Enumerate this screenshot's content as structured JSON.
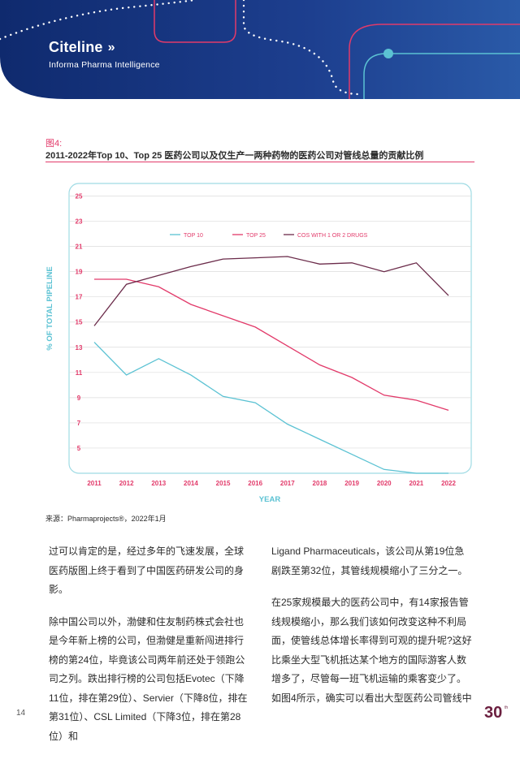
{
  "brand": {
    "name": "Citeline",
    "tagline": "Informa Pharma Intelligence"
  },
  "figure": {
    "label": "图4:",
    "title": "2011-2022年Top 10、Top 25 医药公司以及仅生产一两种药物的医药公司对管线总量的贡献比例"
  },
  "colors": {
    "top10": "#5bc2d3",
    "top25": "#e23a6a",
    "cos": "#6b2b4a",
    "navy": "#16286a",
    "axis": "#e23a6a"
  },
  "chart_data": {
    "type": "line",
    "x": [
      2011,
      2012,
      2013,
      2014,
      2015,
      2016,
      2017,
      2018,
      2019,
      2020,
      2021,
      2022
    ],
    "series": [
      {
        "name": "TOP 10",
        "values": [
          13.4,
          10.8,
          12.1,
          10.8,
          9.1,
          8.6,
          6.9,
          5.7,
          4.5,
          3.3,
          3.0,
          2.2
        ]
      },
      {
        "name": "TOP 25",
        "values": [
          18.4,
          18.4,
          17.8,
          16.4,
          15.5,
          14.6,
          13.1,
          11.6,
          10.6,
          9.2,
          8.8,
          8.0
        ]
      },
      {
        "name": "COS WITH 1 OR 2 DRUGS",
        "values": [
          14.7,
          18.0,
          18.7,
          19.4,
          20.0,
          20.1,
          20.2,
          19.6,
          19.7,
          19.0,
          19.7,
          17.1
        ]
      }
    ],
    "xlabel": "YEAR",
    "ylabel": "% OF TOTAL PIPELINE",
    "yticks": [
      5,
      7,
      9,
      11,
      13,
      15,
      17,
      19,
      21,
      23,
      25
    ],
    "ylim": [
      3,
      26
    ],
    "grid": true,
    "legend": "top-center"
  },
  "source": "来源：Pharmaprojects®，2022年1月",
  "body": {
    "left": [
      "过可以肯定的是，经过多年的飞速发展，全球医药版图上终于看到了中国医药研发公司的身影。",
      "除中国公司以外，渤健和住友制药株式会社也是今年新上榜的公司，但渤健是重新闯进排行榜的第24位，毕竟该公司两年前还处于领跑公司之列。跌出排行榜的公司包括Evotec（下降11位，排在第29位）、Servier（下降8位，排在第31位）、CSL Limited（下降3位，排在第28位）和"
    ],
    "right": [
      "Ligand Pharmaceuticals，该公司从第19位急剧跌至第32位，其管线规模缩小了三分之一。",
      "在25家规模最大的医药公司中，有14家报告管线规模缩小，那么我们该如何改变这种不利局面，使管线总体增长率得到可观的提升呢?这好比乘坐大型飞机抵达某个地方的国际游客人数增多了，尽管每一班飞机运输的乘客变少了。如图4所示，确实可以看出大型医药公司管线中"
    ]
  },
  "page_number": "14",
  "logo_text": "30"
}
